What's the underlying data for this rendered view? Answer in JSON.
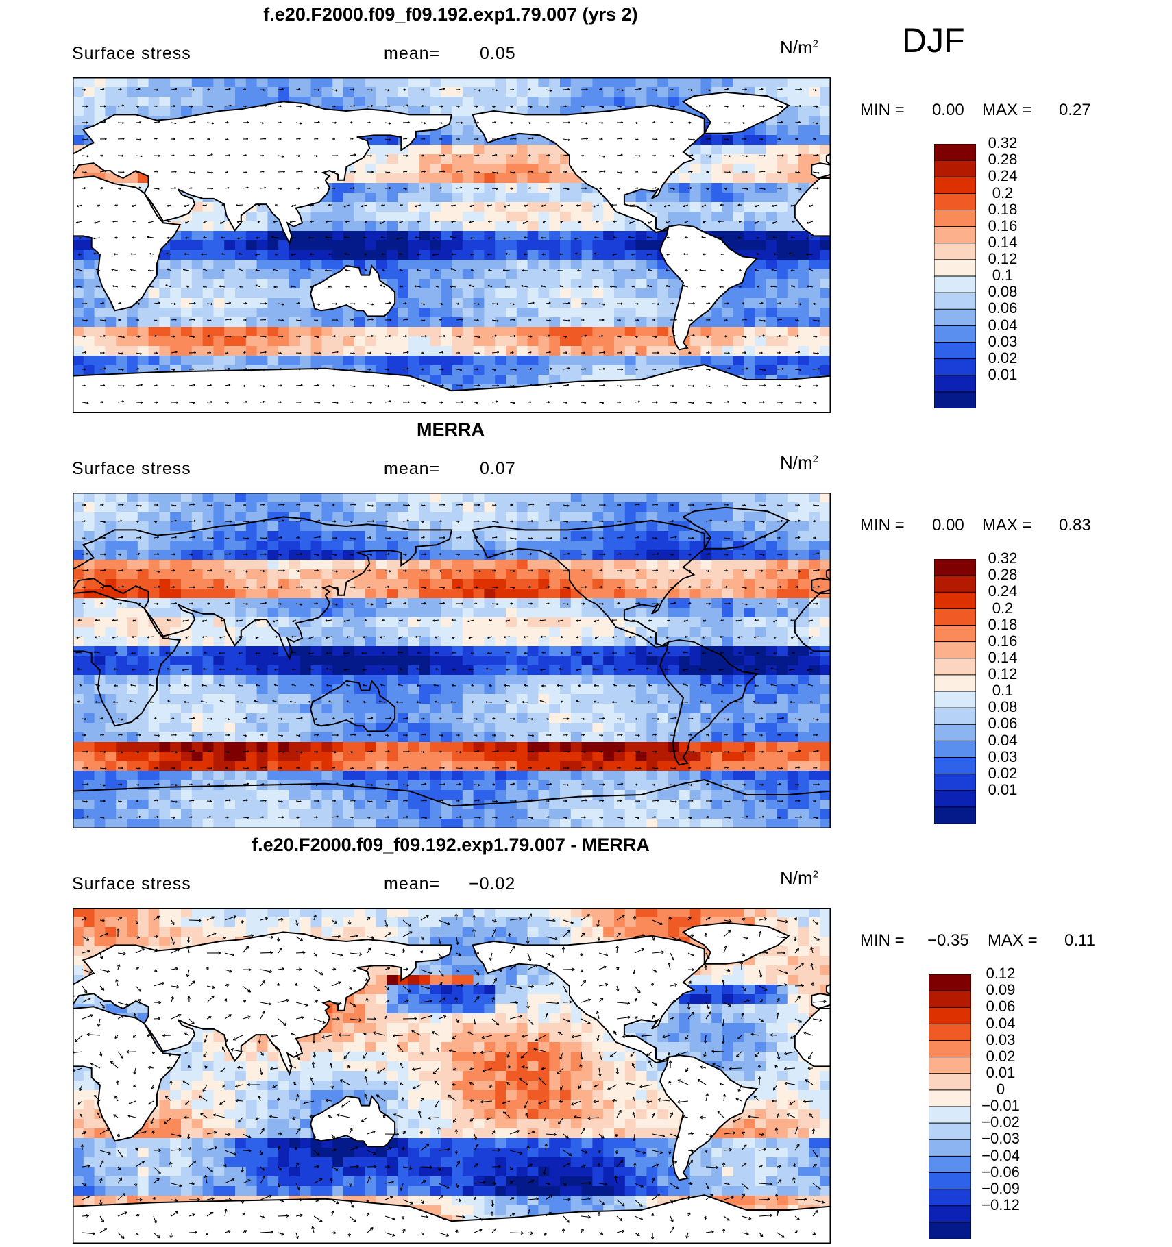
{
  "season": "DJF",
  "panels": [
    {
      "title": "f.e20.F2000.f09_f09.192.exp1.79.007 (yrs 2)",
      "variable": "Surface stress",
      "mean_label": "mean=",
      "mean_value": "0.05",
      "units_base": "N/m",
      "units_exp": "2",
      "min_label": "MIN =",
      "min_value": "0.00",
      "max_label": "MAX =",
      "max_value": "0.27",
      "levels": [
        "0.32",
        "0.28",
        "0.24",
        "0.2",
        "0.18",
        "0.16",
        "0.14",
        "0.12",
        "0.1",
        "0.08",
        "0.06",
        "0.04",
        "0.03",
        "0.02",
        "0.01"
      ],
      "colors": [
        "#7f0000",
        "#b31a00",
        "#dd3100",
        "#f05a24",
        "#fb8a5a",
        "#fdb08c",
        "#fcd5c0",
        "#fdf0e2",
        "#d9eafa",
        "#b6d2f6",
        "#8cb4f0",
        "#5a8ff0",
        "#2f62ea",
        "#1a3fd8",
        "#0c22b4",
        "#051a8a"
      ]
    },
    {
      "title": "MERRA",
      "variable": "Surface stress",
      "mean_label": "mean=",
      "mean_value": "0.07",
      "units_base": "N/m",
      "units_exp": "2",
      "min_label": "MIN =",
      "min_value": "0.00",
      "max_label": "MAX =",
      "max_value": "0.83",
      "levels": [
        "0.32",
        "0.28",
        "0.24",
        "0.2",
        "0.18",
        "0.16",
        "0.14",
        "0.12",
        "0.1",
        "0.08",
        "0.06",
        "0.04",
        "0.03",
        "0.02",
        "0.01"
      ],
      "colors": [
        "#7f0000",
        "#b31a00",
        "#dd3100",
        "#f05a24",
        "#fb8a5a",
        "#fdb08c",
        "#fcd5c0",
        "#fdf0e2",
        "#d9eafa",
        "#b6d2f6",
        "#8cb4f0",
        "#5a8ff0",
        "#2f62ea",
        "#1a3fd8",
        "#0c22b4",
        "#051a8a"
      ]
    },
    {
      "title": "f.e20.F2000.f09_f09.192.exp1.79.007 - MERRA",
      "variable": "Surface stress",
      "mean_label": "mean=",
      "mean_value": "−0.02",
      "units_base": "N/m",
      "units_exp": "2",
      "min_label": "MIN =",
      "min_value": "−0.35",
      "max_label": "MAX =",
      "max_value": "0.11",
      "levels": [
        "0.12",
        "0.09",
        "0.06",
        "0.04",
        "0.03",
        "0.02",
        "0.01",
        "0",
        "−0.01",
        "−0.02",
        "−0.03",
        "−0.04",
        "−0.06",
        "−0.09",
        "−0.12"
      ],
      "colors": [
        "#7f0000",
        "#b31a00",
        "#dd3100",
        "#f05a24",
        "#fb8a5a",
        "#fdb08c",
        "#fcd5c0",
        "#fdf0e2",
        "#d9eafa",
        "#b6d2f6",
        "#8cb4f0",
        "#5a8ff0",
        "#2f62ea",
        "#1a3fd8",
        "#0c22b4",
        "#051a8a"
      ]
    }
  ],
  "chart_data": [
    {
      "type": "heatmap",
      "title": "f.e20.F2000.f09_f09.192.exp1.79.007 (yrs 2)",
      "subtitle": "Surface stress",
      "mean": 0.05,
      "min": 0.0,
      "max": 0.27,
      "units": "N/m2",
      "colorbar_levels": [
        0.32,
        0.28,
        0.24,
        0.2,
        0.18,
        0.16,
        0.14,
        0.12,
        0.1,
        0.08,
        0.06,
        0.04,
        0.03,
        0.02,
        0.01
      ],
      "overlay": "vector arrows"
    },
    {
      "type": "heatmap",
      "title": "MERRA",
      "subtitle": "Surface stress",
      "mean": 0.07,
      "min": 0.0,
      "max": 0.83,
      "units": "N/m2",
      "colorbar_levels": [
        0.32,
        0.28,
        0.24,
        0.2,
        0.18,
        0.16,
        0.14,
        0.12,
        0.1,
        0.08,
        0.06,
        0.04,
        0.03,
        0.02,
        0.01
      ],
      "overlay": "vector arrows"
    },
    {
      "type": "heatmap",
      "title": "f.e20.F2000.f09_f09.192.exp1.79.007 - MERRA",
      "subtitle": "Surface stress",
      "mean": -0.02,
      "min": -0.35,
      "max": 0.11,
      "units": "N/m2",
      "colorbar_levels": [
        0.12,
        0.09,
        0.06,
        0.04,
        0.03,
        0.02,
        0.01,
        0,
        -0.01,
        -0.02,
        -0.03,
        -0.04,
        -0.06,
        -0.09,
        -0.12
      ],
      "overlay": "vector arrows"
    }
  ]
}
